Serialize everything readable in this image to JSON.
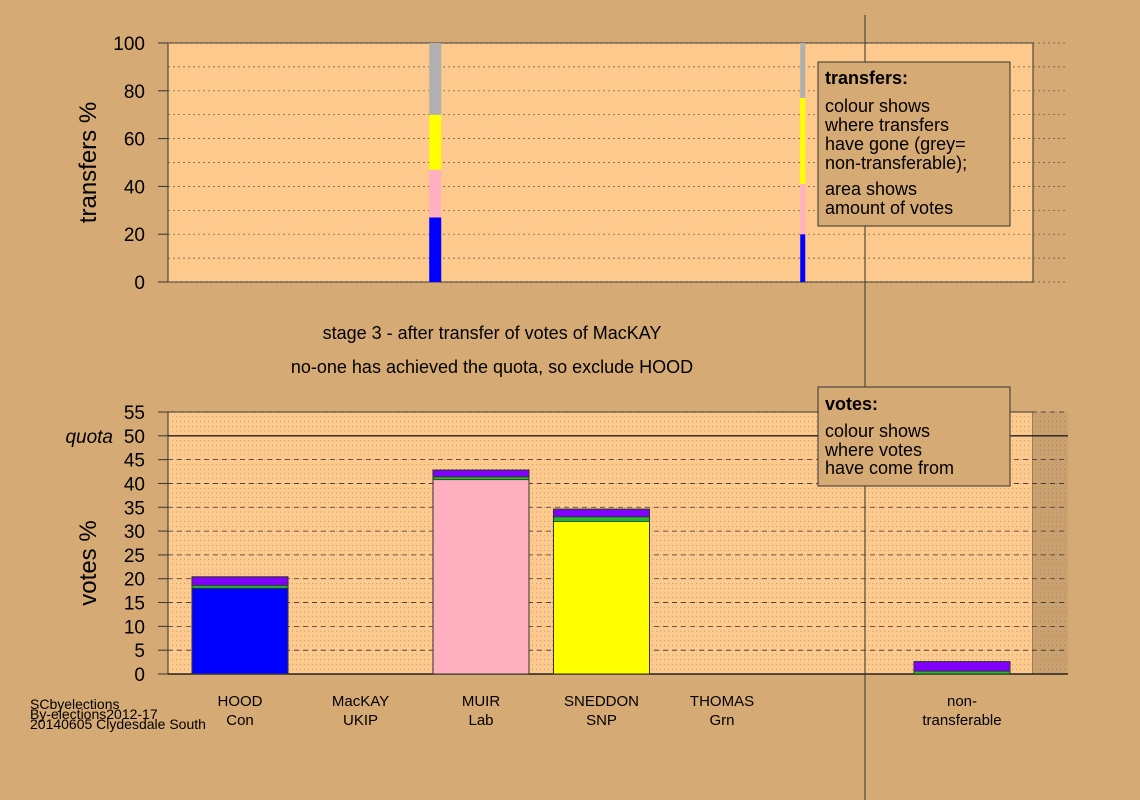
{
  "colors": {
    "background": "#d6aa74",
    "plot_bg": "#fec98d",
    "Con": "#0000ff",
    "UKIP": "#7f00ff",
    "Lab": "#ffb0c0",
    "SNP": "#ffff00",
    "Grn": "#22bb22",
    "nontransferable": "#b0b0b0"
  },
  "captions": {
    "stage": "stage 3 - after transfer of votes of MacKAY",
    "status": "no-one has achieved the quota, so exclude HOOD"
  },
  "footer": {
    "line1": "SCbyelections",
    "line2": "By-elections2012-17",
    "line3": "20140605 Clydesdale South"
  },
  "legend_transfers": {
    "title": "transfers:",
    "lines": [
      "colour shows",
      "where transfers",
      "have gone (grey=",
      "non-transferable);"
    ],
    "lines2": [
      "area shows",
      "amount of votes"
    ]
  },
  "legend_votes": {
    "title": "votes:",
    "lines": [
      "colour shows",
      "where votes",
      "have come from"
    ]
  },
  "chart_data": [
    {
      "type": "bar",
      "ylabel": "transfers %",
      "ylim": [
        0,
        100
      ],
      "yticks": [
        0,
        20,
        40,
        60,
        80,
        100
      ],
      "grid": true,
      "series_order": [
        "Con",
        "Lab",
        "SNP",
        "nontransferable"
      ],
      "bars": [
        {
          "x": 1.62,
          "segments": {
            "Con": 27,
            "Lab": 20,
            "SNP": 23,
            "nontransferable": 30
          }
        },
        {
          "x": 4.67,
          "segments": {
            "Con": 20,
            "Lab": 21,
            "SNP": 36,
            "nontransferable": 23
          }
        }
      ]
    },
    {
      "type": "bar",
      "ylabel": "votes %",
      "ylim": [
        0,
        55
      ],
      "yticks": [
        0,
        5,
        10,
        15,
        20,
        25,
        30,
        35,
        40,
        45,
        50,
        55
      ],
      "quota": 50,
      "quota_label": "quota",
      "grid": true,
      "series_order": [
        "base",
        "Grn",
        "UKIP"
      ],
      "categories": [
        {
          "name": "HOOD",
          "party": "Con",
          "base": 18.0,
          "Grn": 0.6,
          "UKIP": 1.8
        },
        {
          "name": "MacKAY",
          "party": "UKIP",
          "base": 0,
          "Grn": 0,
          "UKIP": 0
        },
        {
          "name": "MUIR",
          "party": "Lab",
          "base": 40.8,
          "Grn": 0.6,
          "UKIP": 1.4
        },
        {
          "name": "SNEDDON",
          "party": "SNP",
          "base": 32.0,
          "Grn": 1.0,
          "UKIP": 1.6
        },
        {
          "name": "THOMAS",
          "party": "Grn",
          "base": 0,
          "Grn": 0,
          "UKIP": 0
        },
        {
          "name": "non-transferable",
          "label_lines": [
            "non-",
            "transferable"
          ],
          "party": "",
          "base": 0,
          "Grn": 0.6,
          "UKIP": 2.0
        }
      ]
    }
  ]
}
